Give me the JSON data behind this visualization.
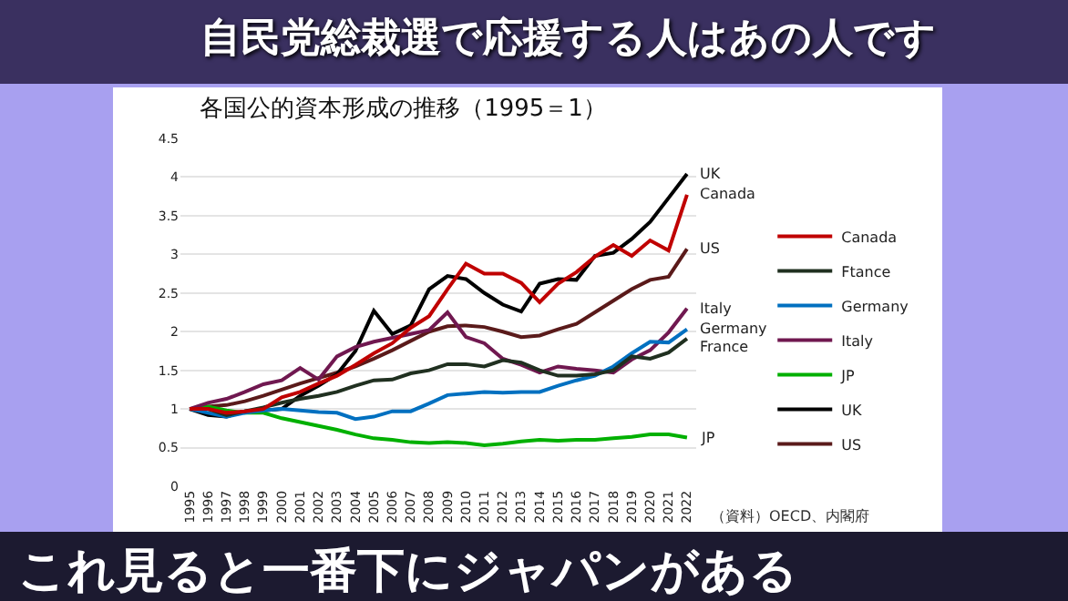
{
  "chart_data": {
    "type": "line",
    "title": "各国公的資本形成の推移（1995＝1）",
    "categories": [
      "1995",
      "1996",
      "1997",
      "1998",
      "1999",
      "2000",
      "2001",
      "2002",
      "2003",
      "2004",
      "2005",
      "2006",
      "2007",
      "2008",
      "2009",
      "2010",
      "2011",
      "2012",
      "2013",
      "2014",
      "2015",
      "2016",
      "2017",
      "2018",
      "2019",
      "2020",
      "2021",
      "2022"
    ],
    "series": [
      {
        "name": "Canada",
        "color": "#c00000",
        "values": [
          1,
          1,
          0.95,
          0.97,
          1,
          1.15,
          1.22,
          1.33,
          1.43,
          1.57,
          1.72,
          1.85,
          2.05,
          2.2,
          2.55,
          2.88,
          2.75,
          2.75,
          2.63,
          2.38,
          2.62,
          2.77,
          2.97,
          3.12,
          2.98,
          3.18,
          3.05,
          3.77
        ]
      },
      {
        "name": "Ftance",
        "color": "#203020",
        "values": [
          1,
          1,
          0.92,
          0.97,
          1.02,
          1.08,
          1.13,
          1.17,
          1.22,
          1.3,
          1.37,
          1.38,
          1.46,
          1.5,
          1.58,
          1.58,
          1.55,
          1.63,
          1.6,
          1.5,
          1.43,
          1.43,
          1.45,
          1.5,
          1.68,
          1.65,
          1.73,
          1.91
        ]
      },
      {
        "name": "Germany",
        "color": "#0070c0",
        "values": [
          1,
          0.95,
          0.9,
          0.95,
          0.98,
          1,
          0.98,
          0.96,
          0.95,
          0.87,
          0.9,
          0.97,
          0.97,
          1.07,
          1.18,
          1.2,
          1.22,
          1.21,
          1.22,
          1.22,
          1.3,
          1.37,
          1.43,
          1.55,
          1.72,
          1.87,
          1.86,
          2.03
        ]
      },
      {
        "name": "Italy",
        "color": "#701850",
        "values": [
          1,
          1.08,
          1.13,
          1.22,
          1.32,
          1.37,
          1.53,
          1.38,
          1.68,
          1.8,
          1.87,
          1.92,
          1.97,
          2.02,
          2.25,
          1.93,
          1.85,
          1.65,
          1.57,
          1.47,
          1.55,
          1.52,
          1.5,
          1.47,
          1.64,
          1.76,
          1.99,
          2.3
        ]
      },
      {
        "name": "JP",
        "color": "#00b000",
        "values": [
          1,
          1.03,
          0.98,
          0.95,
          0.95,
          0.88,
          0.83,
          0.78,
          0.73,
          0.67,
          0.62,
          0.6,
          0.57,
          0.56,
          0.57,
          0.56,
          0.53,
          0.55,
          0.58,
          0.6,
          0.59,
          0.6,
          0.6,
          0.62,
          0.64,
          0.67,
          0.67,
          0.63
        ]
      },
      {
        "name": "UK",
        "color": "#000000",
        "values": [
          1,
          0.92,
          0.9,
          0.97,
          0.98,
          1,
          1.17,
          1.3,
          1.45,
          1.75,
          2.27,
          1.97,
          2.08,
          2.55,
          2.72,
          2.68,
          2.5,
          2.35,
          2.26,
          2.62,
          2.68,
          2.67,
          2.98,
          3.02,
          3.2,
          3.42,
          3.73,
          4.04
        ]
      },
      {
        "name": "US",
        "color": "#5a1a1a",
        "values": [
          1,
          1.03,
          1.05,
          1.1,
          1.17,
          1.25,
          1.33,
          1.4,
          1.47,
          1.55,
          1.65,
          1.76,
          1.88,
          2,
          2.07,
          2.08,
          2.06,
          2,
          1.93,
          1.95,
          2.03,
          2.1,
          2.25,
          2.4,
          2.55,
          2.67,
          2.71,
          3.07
        ]
      }
    ],
    "ylim": [
      0,
      4.5
    ],
    "yticks": [
      0,
      0.5,
      1,
      1.5,
      2,
      2.5,
      3,
      3.5,
      4,
      4.5
    ],
    "grid": "y",
    "legend": "right",
    "marker": "none",
    "line_style": "solid",
    "annotations": [
      "自民党総裁選で応援する人はあの人です",
      "これ見ると一番下にジャパンがある",
      "（資料）OECD、内閣府",
      {
        "text": "UK",
        "x": "2022",
        "y": 4.04
      },
      {
        "text": "Canada",
        "x": "2022",
        "y": 3.77
      },
      {
        "text": "US",
        "x": "2022",
        "y": 3.07
      },
      {
        "text": "Italy",
        "x": "2022",
        "y": 2.3
      },
      {
        "text": "Germany",
        "x": "2022",
        "y": 2.03
      },
      {
        "text": "France",
        "x": "2022",
        "y": 1.91
      },
      {
        "text": "JP",
        "x": "2022",
        "y": 0.63
      }
    ]
  }
}
